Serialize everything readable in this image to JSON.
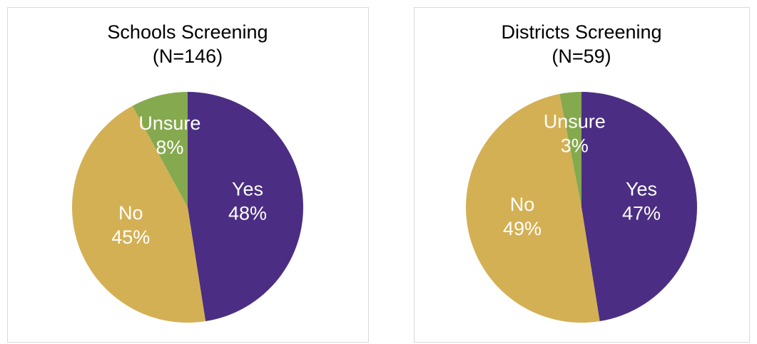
{
  "chart_data": [
    {
      "type": "pie",
      "title": "Schools Screening",
      "subtitle": "(N=146)",
      "categories": [
        "Yes",
        "No",
        "Unsure"
      ],
      "values": [
        48,
        45,
        8
      ],
      "value_labels": [
        "48%",
        "45%",
        "8%"
      ],
      "colors": [
        "#4b2e83",
        "#d4b054",
        "#85a94e"
      ]
    },
    {
      "type": "pie",
      "title": "Districts Screening",
      "subtitle": "(N=59)",
      "categories": [
        "Yes",
        "No",
        "Unsure"
      ],
      "values": [
        47,
        49,
        3
      ],
      "value_labels": [
        "47%",
        "49%",
        "3%"
      ],
      "colors": [
        "#4b2e83",
        "#d4b054",
        "#85a94e"
      ]
    }
  ]
}
